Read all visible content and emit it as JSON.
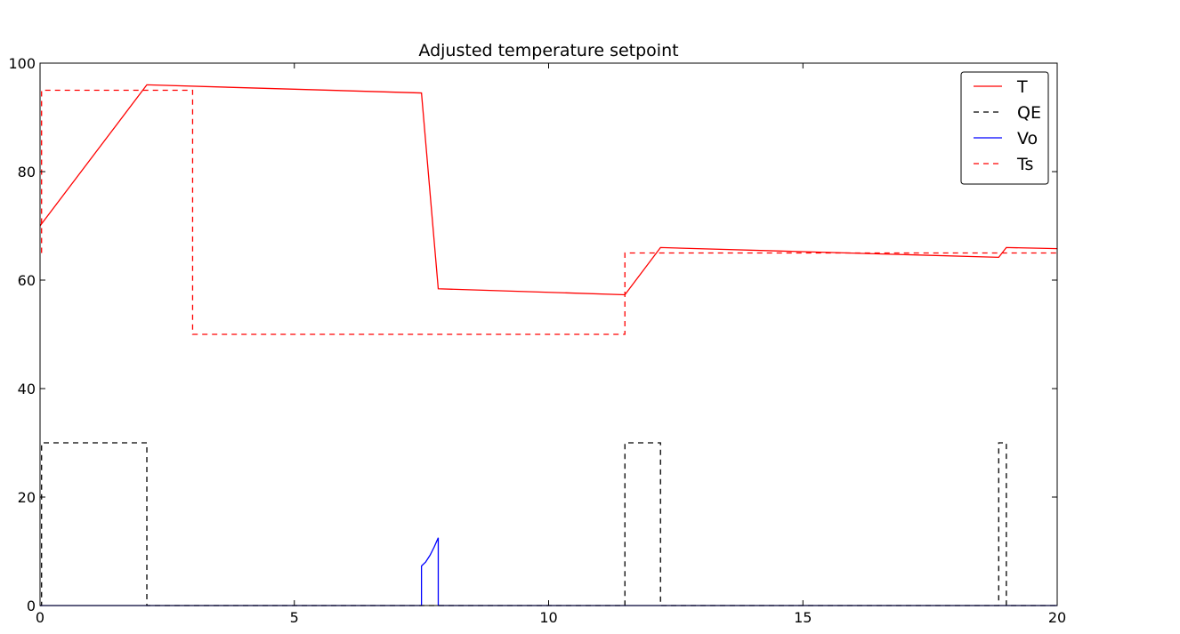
{
  "chart_data": {
    "type": "line",
    "title": "Adjusted temperature setpoint",
    "xlabel": "",
    "ylabel": "",
    "xlim": [
      0,
      20
    ],
    "ylim": [
      0,
      100
    ],
    "xticks": [
      0,
      5,
      10,
      15,
      20
    ],
    "yticks": [
      0,
      20,
      40,
      60,
      80,
      100
    ],
    "grid": false,
    "legend_position": "top-right",
    "series": [
      {
        "name": "T",
        "color": "#ff0000",
        "dash": "solid",
        "points": [
          [
            0,
            70.0
          ],
          [
            2.1,
            96.0
          ],
          [
            7.5,
            94.5
          ],
          [
            7.83,
            58.4
          ],
          [
            11.5,
            57.3
          ],
          [
            12.2,
            66.0
          ],
          [
            18.85,
            64.2
          ],
          [
            19.0,
            66.0
          ],
          [
            20,
            65.8
          ]
        ]
      },
      {
        "name": "QE",
        "color": "#000000",
        "dash": "dashed",
        "points": [
          [
            0,
            0
          ],
          [
            0.03,
            0
          ],
          [
            0.03,
            30
          ],
          [
            2.1,
            30
          ],
          [
            2.1,
            0
          ],
          [
            11.5,
            0
          ],
          [
            11.5,
            30
          ],
          [
            12.2,
            30
          ],
          [
            12.2,
            0
          ],
          [
            18.85,
            0
          ],
          [
            18.85,
            30
          ],
          [
            19.0,
            30
          ],
          [
            19.0,
            0
          ],
          [
            20,
            0
          ]
        ]
      },
      {
        "name": "Vo",
        "color": "#0000ff",
        "dash": "solid",
        "points": [
          [
            0,
            0
          ],
          [
            7.5,
            0
          ],
          [
            7.5,
            7.3
          ],
          [
            7.58,
            8.0
          ],
          [
            7.67,
            9.3
          ],
          [
            7.75,
            10.8
          ],
          [
            7.83,
            12.5
          ],
          [
            7.83,
            0
          ],
          [
            20,
            0
          ]
        ]
      },
      {
        "name": "Ts",
        "color": "#ff0000",
        "dash": "dashed",
        "points": [
          [
            0.03,
            65
          ],
          [
            0.03,
            95
          ],
          [
            3.0,
            95
          ],
          [
            3.0,
            50
          ],
          [
            11.5,
            50
          ],
          [
            11.5,
            65
          ],
          [
            20,
            65
          ]
        ]
      }
    ]
  }
}
